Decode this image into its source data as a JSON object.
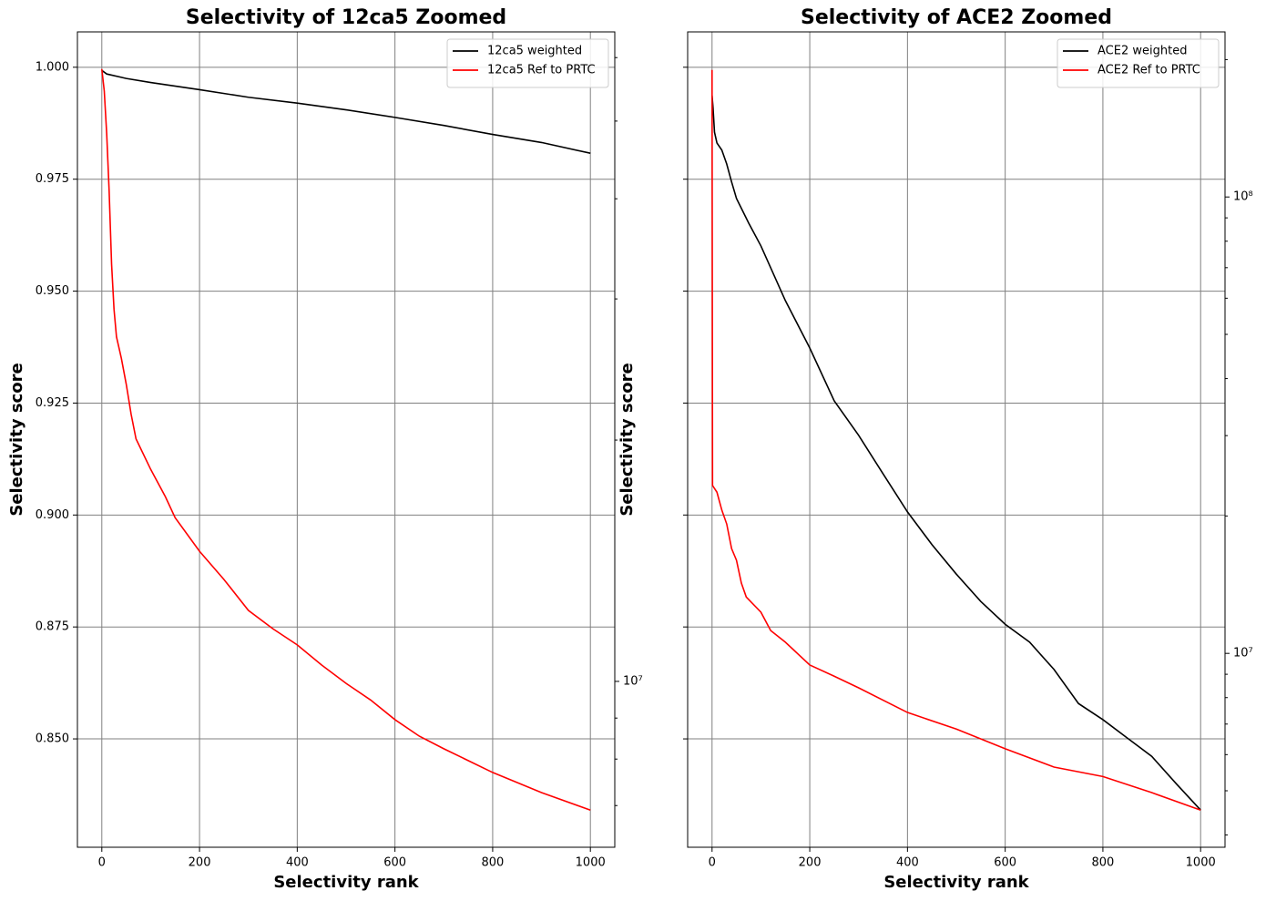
{
  "chart_data": [
    {
      "type": "line",
      "title": "Selectivity of 12ca5 Zoomed",
      "x_label": "Selectivity rank",
      "y_label": "Selectivity score",
      "xlim": [
        -49.95,
        1049.95
      ],
      "xticks": [
        0,
        200,
        400,
        600,
        800,
        1000
      ],
      "ylim": [
        0.8258,
        1.0079
      ],
      "yticks": [
        {
          "value": 0.85,
          "label": "0.850"
        },
        {
          "value": 0.875,
          "label": "0.875"
        },
        {
          "value": 0.9,
          "label": "0.900"
        },
        {
          "value": 0.925,
          "label": "0.925"
        },
        {
          "value": 0.95,
          "label": "0.950"
        },
        {
          "value": 0.975,
          "label": "0.975"
        },
        {
          "value": 1.0,
          "label": "1.000"
        }
      ],
      "show_ytick_labels": true,
      "y2scale": "log",
      "y2lim": [
        6210000,
        64600000
      ],
      "y2ticks": [
        {
          "value": 10000000,
          "label": "10⁷"
        }
      ],
      "y2minorticks": [
        7000000,
        8000000,
        9000000,
        20000000,
        30000000,
        40000000,
        50000000,
        60000000
      ],
      "grid": true,
      "legend": "upper right",
      "series": [
        {
          "name": "12ca5 weighted",
          "color": "#000000",
          "x": [
            0,
            10,
            50,
            100,
            200,
            300,
            400,
            500,
            600,
            700,
            800,
            900,
            1000
          ],
          "values": [
            0.9993,
            0.9985,
            0.9975,
            0.9966,
            0.995,
            0.9933,
            0.992,
            0.9905,
            0.9888,
            0.987,
            0.985,
            0.9832,
            0.9808
          ]
        },
        {
          "name": "12ca5 Ref to PRTC",
          "color": "#ff0000",
          "x": [
            0,
            5,
            10,
            15,
            20,
            25,
            30,
            40,
            50,
            60,
            70,
            100,
            130,
            150,
            200,
            250,
            300,
            350,
            400,
            450,
            500,
            550,
            600,
            650,
            700,
            800,
            900,
            1000
          ],
          "values": [
            0.9996,
            0.9947,
            0.9851,
            0.9723,
            0.956,
            0.9459,
            0.9398,
            0.935,
            0.9292,
            0.9225,
            0.917,
            0.9102,
            0.9041,
            0.8994,
            0.8919,
            0.8856,
            0.8787,
            0.8746,
            0.871,
            0.8665,
            0.8624,
            0.8587,
            0.8543,
            0.8506,
            0.8478,
            0.8425,
            0.838,
            0.8341
          ]
        }
      ]
    },
    {
      "type": "line",
      "title": "Selectivity of ACE2 Zoomed",
      "x_label": "Selectivity rank",
      "y_label": "Selectivity score",
      "xlim": [
        -49.95,
        1049.95
      ],
      "xticks": [
        0,
        200,
        400,
        600,
        800,
        1000
      ],
      "ylim": [
        0.8258,
        1.0079
      ],
      "yticks": [
        0.85,
        0.875,
        0.9,
        0.925,
        0.95,
        0.975,
        1.0
      ],
      "show_ytick_labels": false,
      "y2scale": "log",
      "y2lim": [
        3760000,
        230000000
      ],
      "y2ticks": [
        {
          "value": 10000000,
          "label": "10⁷"
        },
        {
          "value": 100000000,
          "label": "10⁸"
        }
      ],
      "y2minorticks": [
        4000000,
        5000000,
        6000000,
        7000000,
        8000000,
        9000000,
        20000000,
        30000000,
        40000000,
        50000000,
        60000000,
        70000000,
        80000000,
        90000000,
        200000000
      ],
      "grid": true,
      "legend": "upper right",
      "series": [
        {
          "name": "ACE2 weighted",
          "color": "#000000",
          "x": [
            0,
            2,
            5,
            10,
            20,
            30,
            40,
            50,
            75,
            100,
            150,
            200,
            250,
            300,
            350,
            400,
            450,
            500,
            550,
            600,
            650,
            700,
            750,
            800,
            850,
            900,
            950,
            1000
          ],
          "values": [
            0.9937,
            0.991,
            0.9855,
            0.9831,
            0.9815,
            0.9784,
            0.9744,
            0.9707,
            0.9652,
            0.9601,
            0.9479,
            0.9373,
            0.9255,
            0.9178,
            0.9092,
            0.9007,
            0.8934,
            0.8868,
            0.8807,
            0.8756,
            0.8716,
            0.8655,
            0.8579,
            0.8543,
            0.8502,
            0.8461,
            0.84,
            0.8341
          ]
        },
        {
          "name": "ACE2 Ref to PRTC",
          "color": "#ff0000",
          "x": [
            0,
            1,
            10,
            20,
            30,
            40,
            50,
            60,
            70,
            100,
            120,
            150,
            200,
            250,
            300,
            400,
            500,
            600,
            700,
            800,
            900,
            1000
          ],
          "values": [
            0.9994,
            0.9066,
            0.9051,
            0.9011,
            0.898,
            0.8925,
            0.8899,
            0.8848,
            0.8817,
            0.8783,
            0.8742,
            0.8716,
            0.8665,
            0.864,
            0.8614,
            0.8559,
            0.8522,
            0.8478,
            0.8437,
            0.8416,
            0.838,
            0.8341
          ]
        }
      ]
    }
  ]
}
